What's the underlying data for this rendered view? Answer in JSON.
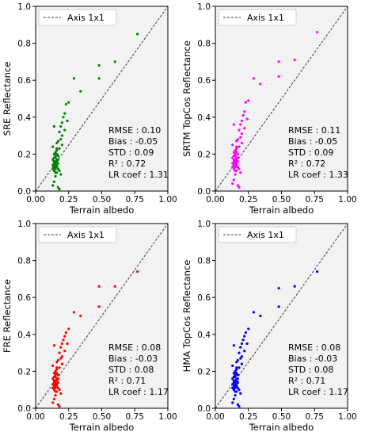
{
  "chart_data": [
    {
      "type": "scatter",
      "xlabel": "Terrain albedo",
      "ylabel": "SRE Reflectance",
      "xlim": [
        0,
        1
      ],
      "ylim": [
        0,
        1
      ],
      "xticks": [
        "0.00",
        "0.25",
        "0.50",
        "0.75",
        "1.00"
      ],
      "yticks": [
        "0.0",
        "0.2",
        "0.4",
        "0.6",
        "0.8",
        "1.0"
      ],
      "legend": {
        "label": "Axis 1x1",
        "placement": "top-left"
      },
      "reference_line": {
        "x": [
          0,
          1
        ],
        "y": [
          0,
          1
        ],
        "style": "dashed"
      },
      "stats": [
        "RMSE : 0.10",
        "Bias : -0.05",
        "STD : 0.09",
        "R² : 0.72",
        "LR coef : 1.31"
      ],
      "color": "#008000",
      "x": [
        0.77,
        0.6,
        0.48,
        0.48,
        0.34,
        0.29,
        0.25,
        0.23,
        0.22,
        0.21,
        0.24,
        0.2,
        0.19,
        0.22,
        0.18,
        0.2,
        0.19,
        0.17,
        0.16,
        0.14,
        0.2,
        0.13,
        0.18,
        0.16,
        0.15,
        0.14,
        0.16,
        0.17,
        0.15,
        0.14,
        0.15,
        0.16,
        0.17,
        0.13,
        0.14,
        0.15,
        0.16,
        0.17,
        0.14,
        0.15,
        0.16,
        0.13,
        0.15,
        0.14,
        0.16,
        0.15,
        0.17,
        0.13,
        0.15,
        0.14,
        0.18,
        0.16,
        0.15,
        0.19,
        0.15,
        0.14,
        0.13,
        0.17,
        0.18,
        0.16
      ],
      "y": [
        0.85,
        0.7,
        0.68,
        0.61,
        0.54,
        0.61,
        0.48,
        0.47,
        0.42,
        0.4,
        0.38,
        0.37,
        0.35,
        0.33,
        0.32,
        0.3,
        0.28,
        0.27,
        0.26,
        0.35,
        0.25,
        0.24,
        0.23,
        0.22,
        0.21,
        0.2,
        0.2,
        0.19,
        0.19,
        0.18,
        0.18,
        0.17,
        0.17,
        0.17,
        0.16,
        0.16,
        0.16,
        0.15,
        0.15,
        0.15,
        0.14,
        0.14,
        0.14,
        0.13,
        0.13,
        0.13,
        0.12,
        0.12,
        0.12,
        0.11,
        0.11,
        0.1,
        0.1,
        0.09,
        0.08,
        0.05,
        0.03,
        0.02,
        0.01,
        0.23
      ]
    },
    {
      "type": "scatter",
      "xlabel": "Terrain albedo",
      "ylabel": "SRTM TopCos Reflectance",
      "xlim": [
        0,
        1
      ],
      "ylim": [
        0,
        1
      ],
      "xticks": [
        "0.00",
        "0.25",
        "0.50",
        "0.75",
        "1.00"
      ],
      "yticks": [
        "0.0",
        "0.2",
        "0.4",
        "0.6",
        "0.8",
        "1.0"
      ],
      "legend": {
        "label": "Axis 1x1",
        "placement": "top-left"
      },
      "reference_line": {
        "x": [
          0,
          1
        ],
        "y": [
          0,
          1
        ],
        "style": "dashed"
      },
      "stats": [
        "RMSE : 0.11",
        "Bias : -0.05",
        "STD : 0.09",
        "R² : 0.72",
        "LR coef : 1.33"
      ],
      "color": "#ff00ff",
      "x": [
        0.77,
        0.6,
        0.48,
        0.48,
        0.34,
        0.29,
        0.25,
        0.23,
        0.22,
        0.21,
        0.24,
        0.2,
        0.19,
        0.22,
        0.18,
        0.2,
        0.19,
        0.17,
        0.16,
        0.14,
        0.2,
        0.13,
        0.18,
        0.16,
        0.15,
        0.14,
        0.16,
        0.17,
        0.15,
        0.14,
        0.15,
        0.16,
        0.17,
        0.13,
        0.14,
        0.15,
        0.16,
        0.17,
        0.14,
        0.15,
        0.16,
        0.13,
        0.15,
        0.14,
        0.16,
        0.15,
        0.17,
        0.13,
        0.15,
        0.14,
        0.18,
        0.16,
        0.15,
        0.19,
        0.15,
        0.14,
        0.13,
        0.17,
        0.18,
        0.16
      ],
      "y": [
        0.86,
        0.71,
        0.7,
        0.62,
        0.58,
        0.61,
        0.49,
        0.48,
        0.43,
        0.41,
        0.39,
        0.38,
        0.36,
        0.34,
        0.33,
        0.31,
        0.29,
        0.28,
        0.27,
        0.36,
        0.26,
        0.25,
        0.24,
        0.23,
        0.22,
        0.21,
        0.21,
        0.2,
        0.2,
        0.19,
        0.19,
        0.18,
        0.18,
        0.18,
        0.17,
        0.17,
        0.17,
        0.16,
        0.16,
        0.16,
        0.15,
        0.15,
        0.15,
        0.14,
        0.14,
        0.14,
        0.13,
        0.13,
        0.13,
        0.12,
        0.12,
        0.11,
        0.11,
        0.1,
        0.09,
        0.06,
        0.04,
        0.03,
        0.02,
        0.24
      ]
    },
    {
      "type": "scatter",
      "xlabel": "Terrain albedo",
      "ylabel": "FRE Reflectance",
      "xlim": [
        0,
        1
      ],
      "ylim": [
        0,
        1
      ],
      "xticks": [
        "0.00",
        "0.25",
        "0.50",
        "0.75",
        "1.00"
      ],
      "yticks": [
        "0.0",
        "0.2",
        "0.4",
        "0.6",
        "0.8",
        "1.0"
      ],
      "legend": {
        "label": "Axis 1x1",
        "placement": "top-left"
      },
      "reference_line": {
        "x": [
          0,
          1
        ],
        "y": [
          0,
          1
        ],
        "style": "dashed"
      },
      "stats": [
        "RMSE : 0.08",
        "Bias : -0.03",
        "STD : 0.08",
        "R² : 0.71",
        "LR coef : 1.17"
      ],
      "color": "#ff0000",
      "x": [
        0.77,
        0.6,
        0.48,
        0.48,
        0.34,
        0.29,
        0.25,
        0.23,
        0.22,
        0.21,
        0.24,
        0.2,
        0.19,
        0.22,
        0.18,
        0.2,
        0.19,
        0.17,
        0.16,
        0.14,
        0.2,
        0.13,
        0.18,
        0.16,
        0.15,
        0.14,
        0.16,
        0.17,
        0.15,
        0.14,
        0.15,
        0.16,
        0.17,
        0.13,
        0.14,
        0.15,
        0.16,
        0.17,
        0.14,
        0.15,
        0.16,
        0.13,
        0.15,
        0.14,
        0.16,
        0.15,
        0.17,
        0.13,
        0.15,
        0.14,
        0.18,
        0.16,
        0.15,
        0.19,
        0.15,
        0.14,
        0.13,
        0.17,
        0.18,
        0.16
      ],
      "y": [
        0.74,
        0.66,
        0.66,
        0.55,
        0.5,
        0.52,
        0.43,
        0.41,
        0.39,
        0.37,
        0.35,
        0.35,
        0.33,
        0.31,
        0.3,
        0.28,
        0.27,
        0.26,
        0.25,
        0.34,
        0.24,
        0.23,
        0.22,
        0.21,
        0.2,
        0.19,
        0.19,
        0.18,
        0.18,
        0.17,
        0.17,
        0.16,
        0.16,
        0.16,
        0.15,
        0.15,
        0.15,
        0.14,
        0.14,
        0.14,
        0.13,
        0.13,
        0.13,
        0.12,
        0.12,
        0.12,
        0.11,
        0.11,
        0.11,
        0.1,
        0.1,
        0.09,
        0.09,
        0.08,
        0.07,
        0.05,
        0.03,
        0.02,
        0.01,
        0.22
      ]
    },
    {
      "type": "scatter",
      "xlabel": "Terrain albedo",
      "ylabel": "HMA TopCos Reflectance",
      "xlim": [
        0,
        1
      ],
      "ylim": [
        0,
        1
      ],
      "xticks": [
        "0.00",
        "0.25",
        "0.50",
        "0.75",
        "1.00"
      ],
      "yticks": [
        "0.0",
        "0.2",
        "0.4",
        "0.6",
        "0.8",
        "1.0"
      ],
      "legend": {
        "label": "Axis 1x1",
        "placement": "top-left"
      },
      "reference_line": {
        "x": [
          0,
          1
        ],
        "y": [
          0,
          1
        ],
        "style": "dashed"
      },
      "stats": [
        "RMSE : 0.08",
        "Bias : -0.03",
        "STD : 0.08",
        "R² : 0.71",
        "LR coef : 1.17"
      ],
      "color": "#0000ff",
      "x": [
        0.77,
        0.6,
        0.48,
        0.48,
        0.34,
        0.29,
        0.25,
        0.23,
        0.22,
        0.21,
        0.24,
        0.2,
        0.19,
        0.22,
        0.18,
        0.2,
        0.19,
        0.17,
        0.16,
        0.14,
        0.2,
        0.13,
        0.18,
        0.16,
        0.15,
        0.14,
        0.16,
        0.17,
        0.15,
        0.14,
        0.15,
        0.16,
        0.17,
        0.13,
        0.14,
        0.15,
        0.16,
        0.17,
        0.14,
        0.15,
        0.16,
        0.13,
        0.15,
        0.14,
        0.16,
        0.15,
        0.17,
        0.13,
        0.15,
        0.14,
        0.18,
        0.16,
        0.15,
        0.19,
        0.15,
        0.14,
        0.13,
        0.17,
        0.18,
        0.16
      ],
      "y": [
        0.74,
        0.66,
        0.65,
        0.55,
        0.5,
        0.52,
        0.43,
        0.41,
        0.39,
        0.37,
        0.35,
        0.35,
        0.33,
        0.31,
        0.3,
        0.28,
        0.27,
        0.26,
        0.25,
        0.34,
        0.24,
        0.23,
        0.22,
        0.21,
        0.2,
        0.19,
        0.19,
        0.18,
        0.18,
        0.17,
        0.17,
        0.16,
        0.16,
        0.16,
        0.15,
        0.15,
        0.15,
        0.14,
        0.14,
        0.14,
        0.13,
        0.13,
        0.13,
        0.12,
        0.12,
        0.12,
        0.11,
        0.11,
        0.11,
        0.1,
        0.1,
        0.09,
        0.09,
        0.08,
        0.07,
        0.05,
        0.03,
        0.02,
        0.01,
        0.22
      ]
    }
  ]
}
